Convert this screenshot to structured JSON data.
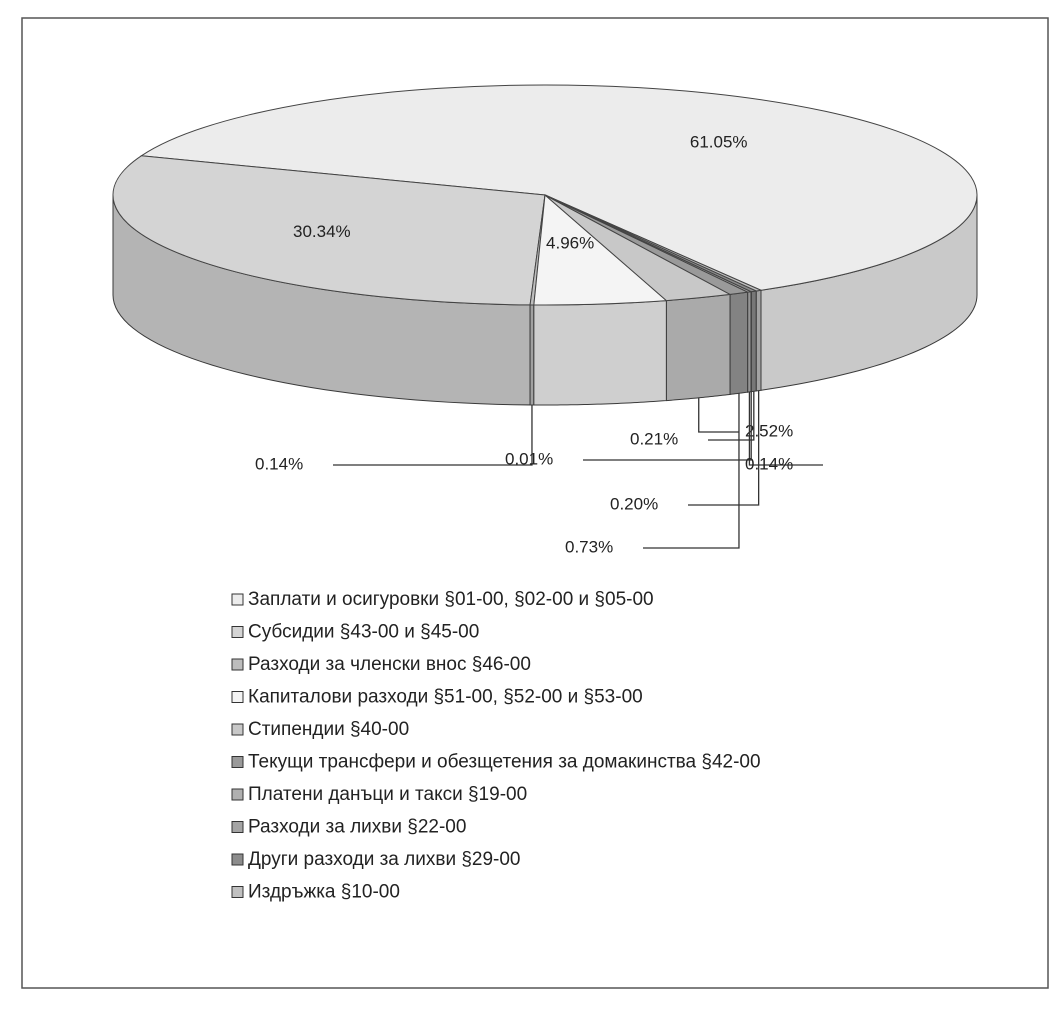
{
  "chart_data": {
    "type": "pie3d",
    "categories": [
      "Заплати  и осигуровки §01-00, §02-00 и §05-00",
      "Субсидии §43-00 и §45-00",
      "Разходи за членски внос §46-00",
      "Капиталови разходи §51-00, §52-00 и §53-00",
      "Стипендии §40-00",
      "Текущи трансфери и обезщетения за домакинства §42-00",
      "Платени данъци и такси §19-00",
      "Разходи за лихви §22-00",
      "Други разходи за лихви §29-00",
      "Издръжка §10-00"
    ],
    "values": [
      61.05,
      30.34,
      0.14,
      4.96,
      2.52,
      0.73,
      0.14,
      0.01,
      0.21,
      0.2
    ],
    "value_labels": [
      "61.05%",
      "30.34%",
      "0.14%",
      "4.96%",
      "2.52%",
      "0.73%",
      "0.14%",
      "0.01%",
      "0.21%",
      "0.20%"
    ],
    "colors": [
      "#ececec",
      "#d4d4d4",
      "#bdbdbd",
      "#f4f4f4",
      "#c8c8c8",
      "#9a9a9a",
      "#b0b0b0",
      "#a4a4a4",
      "#8c8c8c",
      "#c0c0c0"
    ]
  }
}
